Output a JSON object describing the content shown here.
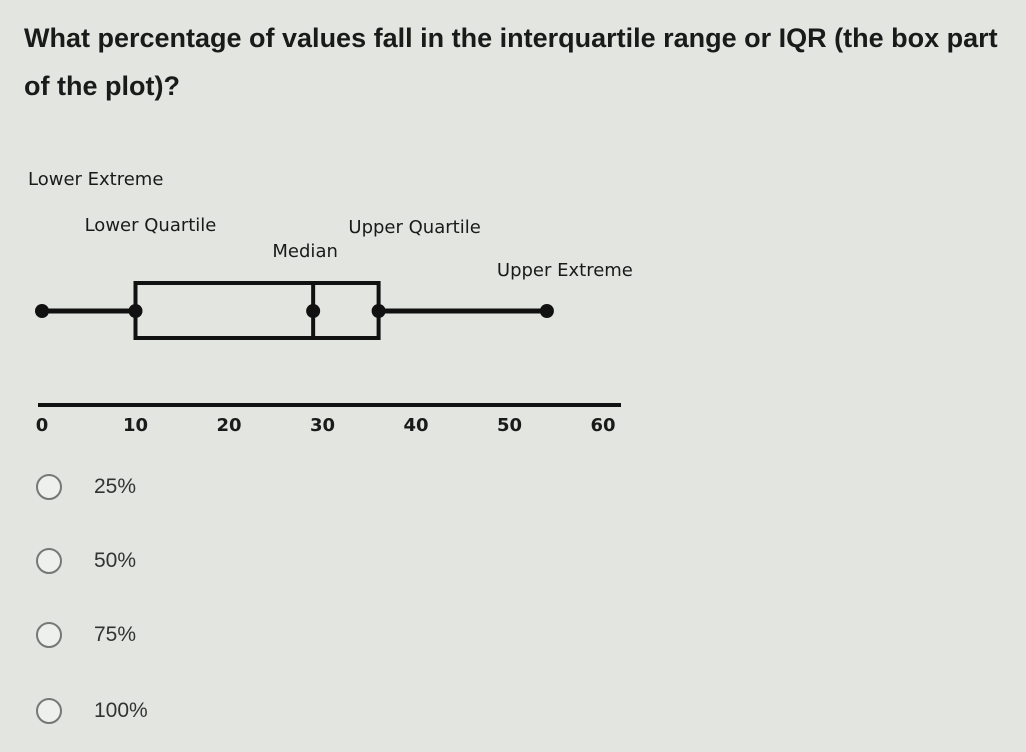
{
  "question": "What percentage of values fall in the interquartile range or IQR (the box part of the plot)?",
  "chart_data": {
    "type": "box",
    "min": 0,
    "q1": 10,
    "median": 29,
    "q3": 36,
    "max": 54,
    "annotations": [
      "Lower Extreme",
      "Lower Quartile",
      "Median",
      "Upper Quartile",
      "Upper Extreme"
    ],
    "color": "#111111",
    "xlim": [
      0,
      60
    ],
    "xticks": [
      0,
      10,
      20,
      30,
      40,
      50,
      60
    ],
    "grid": false
  },
  "options": [
    "25%",
    "50%",
    "75%",
    "100%"
  ]
}
